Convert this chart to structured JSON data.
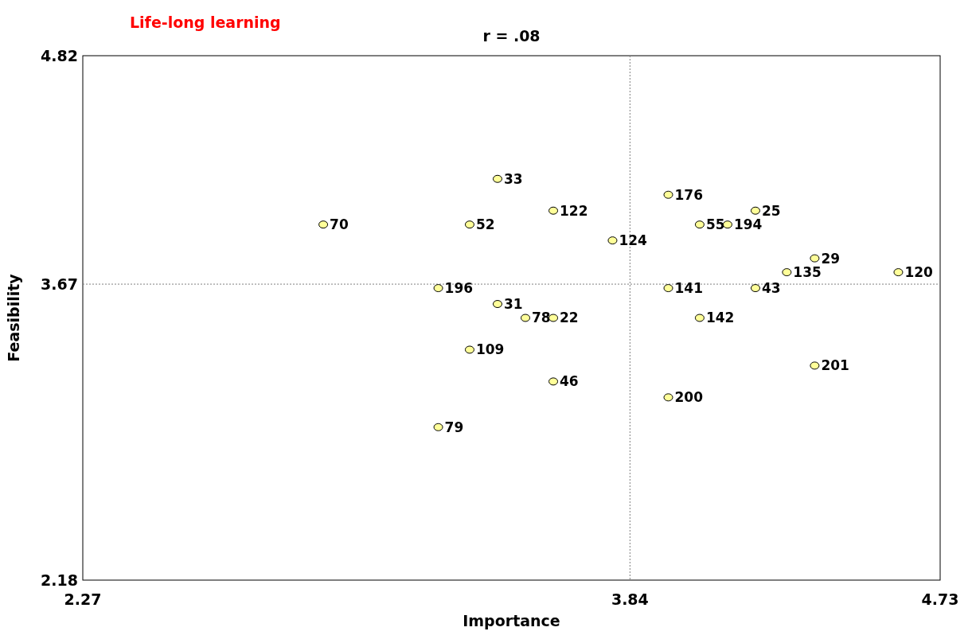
{
  "chart_data": {
    "type": "scatter",
    "title": "Life-long learning",
    "subtitle": "r = .08",
    "xlabel": "Importance",
    "ylabel": "Feasibility",
    "x": [
      3.46,
      3.95,
      3.62,
      4.2,
      2.96,
      3.38,
      4.04,
      4.12,
      3.79,
      4.37,
      4.29,
      4.61,
      3.29,
      3.95,
      4.2,
      3.46,
      3.54,
      3.62,
      4.04,
      3.38,
      4.37,
      3.62,
      3.95,
      3.29
    ],
    "values": [
      4.2,
      4.12,
      4.04,
      4.04,
      3.97,
      3.97,
      3.97,
      3.97,
      3.89,
      3.8,
      3.73,
      3.73,
      3.65,
      3.65,
      3.65,
      3.57,
      3.5,
      3.5,
      3.5,
      3.34,
      3.26,
      3.18,
      3.1,
      2.95
    ],
    "annotations": [
      {
        "text": "33",
        "x": 3.46,
        "y": 4.2
      },
      {
        "text": "176",
        "x": 3.95,
        "y": 4.12
      },
      {
        "text": "122",
        "x": 3.62,
        "y": 4.04
      },
      {
        "text": "25",
        "x": 4.2,
        "y": 4.04
      },
      {
        "text": "70",
        "x": 2.96,
        "y": 3.97
      },
      {
        "text": "52",
        "x": 3.38,
        "y": 3.97
      },
      {
        "text": "55",
        "x": 4.04,
        "y": 3.97
      },
      {
        "text": "194",
        "x": 4.12,
        "y": 3.97
      },
      {
        "text": "124",
        "x": 3.79,
        "y": 3.89
      },
      {
        "text": "29",
        "x": 4.37,
        "y": 3.8
      },
      {
        "text": "135",
        "x": 4.29,
        "y": 3.73
      },
      {
        "text": "120",
        "x": 4.61,
        "y": 3.73
      },
      {
        "text": "196",
        "x": 3.29,
        "y": 3.65
      },
      {
        "text": "141",
        "x": 3.95,
        "y": 3.65
      },
      {
        "text": "43",
        "x": 4.2,
        "y": 3.65
      },
      {
        "text": "31",
        "x": 3.46,
        "y": 3.57
      },
      {
        "text": "78",
        "x": 3.54,
        "y": 3.5
      },
      {
        "text": "22",
        "x": 3.62,
        "y": 3.5
      },
      {
        "text": "142",
        "x": 4.04,
        "y": 3.5
      },
      {
        "text": "109",
        "x": 3.38,
        "y": 3.34
      },
      {
        "text": "201",
        "x": 4.37,
        "y": 3.26
      },
      {
        "text": "46",
        "x": 3.62,
        "y": 3.18
      },
      {
        "text": "200",
        "x": 3.95,
        "y": 3.1
      },
      {
        "text": "79",
        "x": 3.29,
        "y": 2.95
      }
    ],
    "color": "#ffff99",
    "marker": "circle",
    "xlim": [
      2.27,
      4.73
    ],
    "xticks": [
      2.27,
      3.84,
      4.73
    ],
    "ylim": [
      2.18,
      4.82
    ],
    "yticks": [
      2.18,
      3.67,
      4.82
    ],
    "ref_lines": [
      {
        "axis": "x",
        "value": 3.84,
        "color": "#808080",
        "line_style": "dotted"
      },
      {
        "axis": "y",
        "value": 3.67,
        "color": "#808080",
        "line_style": "dotted"
      }
    ],
    "grid": false
  }
}
